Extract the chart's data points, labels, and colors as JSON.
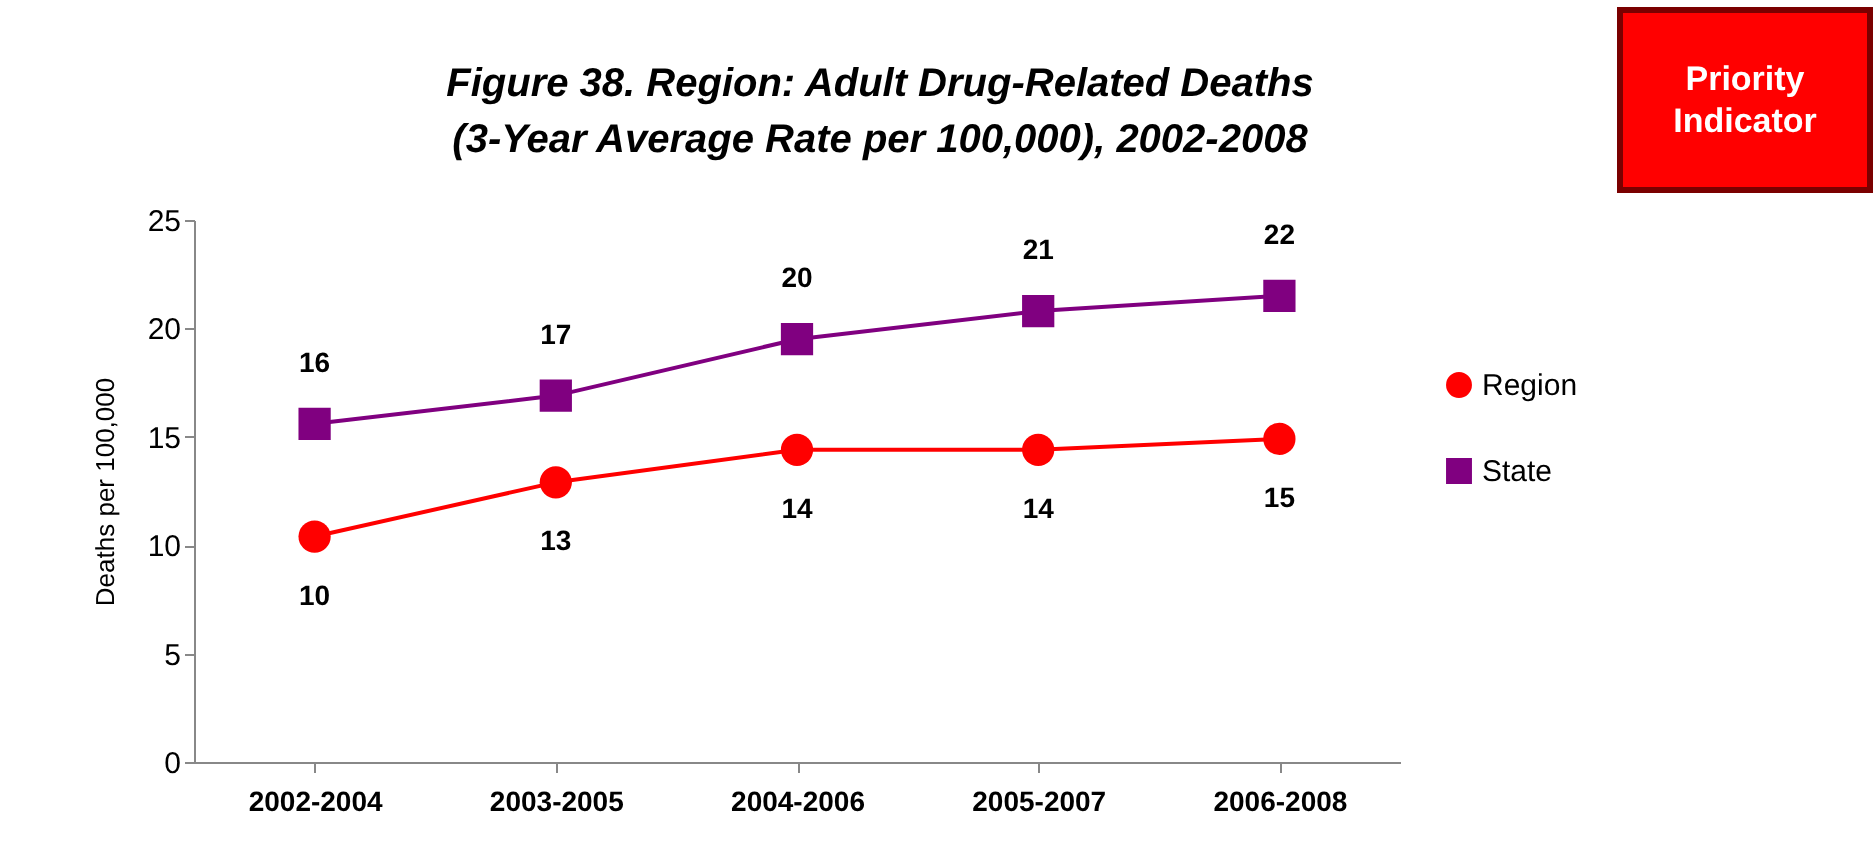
{
  "chart_data": {
    "type": "line",
    "title": [
      "Figure 38. Region: Adult Drug-Related Deaths",
      "(3-Year Average Rate per 100,000), 2002-2008"
    ],
    "ylabel": "Deaths per 100,000",
    "categories": [
      "2002-2004",
      "2003-2005",
      "2004-2006",
      "2005-2007",
      "2006-2008"
    ],
    "series": [
      {
        "name": "Region",
        "color": "#ff0000",
        "marker": "circle",
        "values": [
          10.4,
          12.9,
          14.4,
          14.4,
          14.9
        ],
        "value_labels": [
          "10",
          "13",
          "14",
          "14",
          "15"
        ]
      },
      {
        "name": "State",
        "color": "#800080",
        "marker": "square",
        "values": [
          15.6,
          16.9,
          19.5,
          20.8,
          21.5
        ],
        "value_labels": [
          "16",
          "17",
          "20",
          "21",
          "22"
        ]
      }
    ],
    "ylim": [
      0,
      25
    ],
    "yticks": [
      0,
      5,
      10,
      15,
      20,
      25
    ],
    "grid": false,
    "legend": "right",
    "annotations": [
      "Priority Indicator"
    ]
  }
}
